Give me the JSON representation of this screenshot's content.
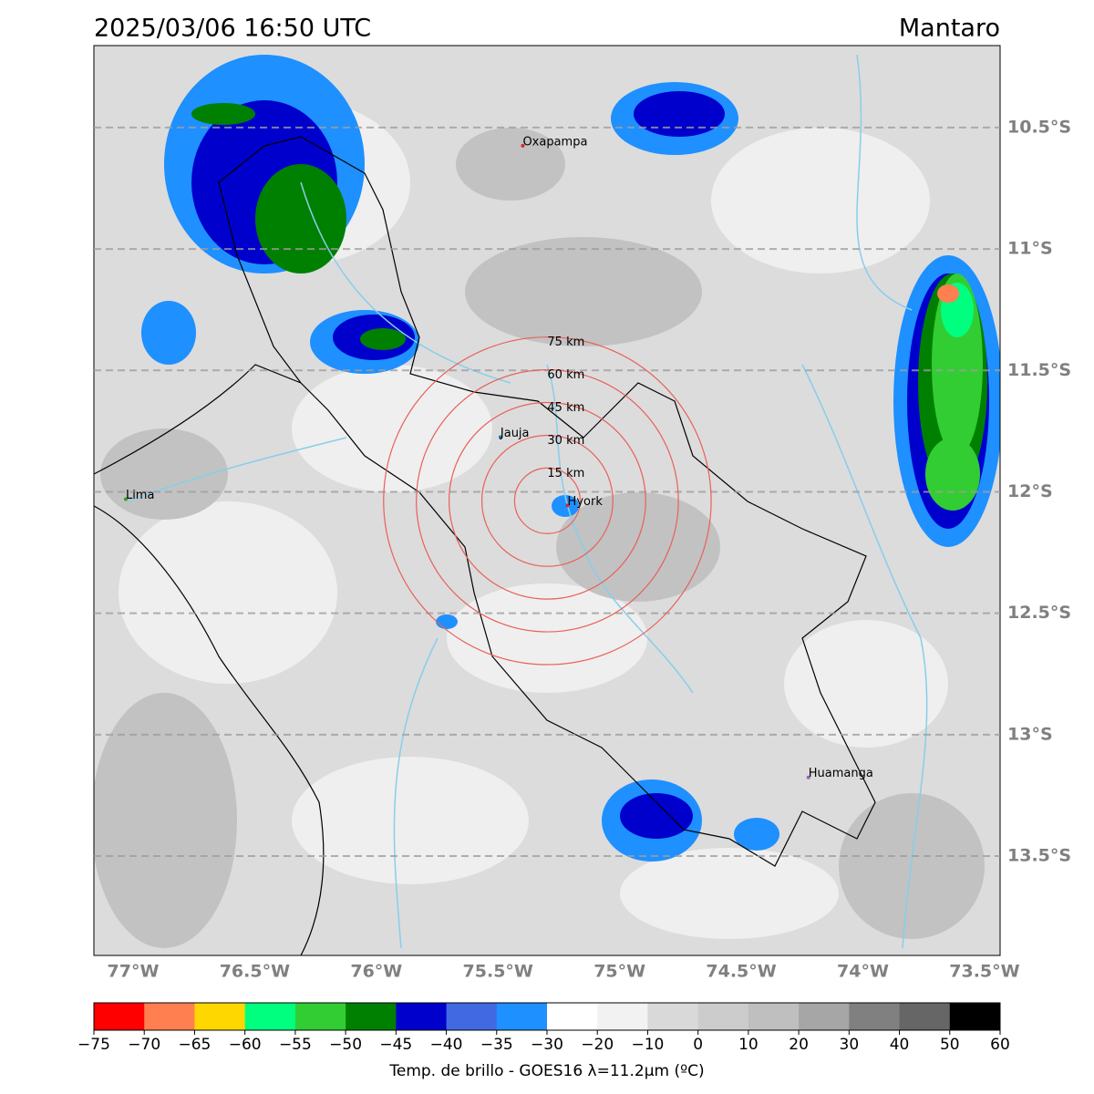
{
  "map": {
    "title": "2025/03/06 16:50 UTC",
    "region": "Mantaro",
    "xlim": [
      -77.161,
      -73.436
    ],
    "ylim": [
      -13.909,
      -10.1625
    ],
    "xticks": [
      {
        "value": -77,
        "label": "77°W"
      },
      {
        "value": -76.5,
        "label": "76.5°W"
      },
      {
        "value": -76,
        "label": "76°W"
      },
      {
        "value": -75.5,
        "label": "75.5°W"
      },
      {
        "value": -75,
        "label": "75°W"
      },
      {
        "value": -74.5,
        "label": "74.5°W"
      },
      {
        "value": -74,
        "label": "74°W"
      },
      {
        "value": -73.5,
        "label": "73.5°W"
      }
    ],
    "yticks": [
      {
        "value": -10.5,
        "label": "10.5°S"
      },
      {
        "value": -11,
        "label": "11°S"
      },
      {
        "value": -11.5,
        "label": "11.5°S"
      },
      {
        "value": -12,
        "label": "12°S"
      },
      {
        "value": -12.5,
        "label": "12.5°S"
      },
      {
        "value": -13,
        "label": "13°S"
      },
      {
        "value": -13.5,
        "label": "13.5°S"
      }
    ],
    "grid": true,
    "cities": [
      {
        "name": "Oxapampa",
        "lon": -75.398,
        "lat": -10.575,
        "color": "#d62728"
      },
      {
        "name": "Jauja",
        "lon": -75.49,
        "lat": -11.775,
        "color": "#1f77b4"
      },
      {
        "name": "Hyork",
        "lon": -75.214,
        "lat": -12.056,
        "color": "#d62728"
      },
      {
        "name": "Lima",
        "lon": -77.03,
        "lat": -12.03,
        "color": "#2ca02c"
      },
      {
        "name": "Huamanga",
        "lon": -74.224,
        "lat": -13.176,
        "color": "#9467bd"
      }
    ],
    "rings": {
      "lon": -75.297,
      "lat": -12.037,
      "color": "#e8605a",
      "radii": [
        {
          "value": 15,
          "label": "15 km"
        },
        {
          "value": 30,
          "label": "30 km"
        },
        {
          "value": 45,
          "label": "45 km"
        },
        {
          "value": 60,
          "label": "60 km"
        },
        {
          "value": 75,
          "label": "75 km"
        }
      ]
    },
    "colorbar": {
      "label": "Temp. de brillo - GOES16 λ=11.2μm (ºC)",
      "colors": [
        "#ff0000",
        "#ff7f50",
        "#ffd700",
        "#00ff7f",
        "#32cd32",
        "#008000",
        "#0000cd",
        "#4169e1",
        "#1e90ff",
        "#ffffff",
        "#f2f2f2",
        "#d9d9d9",
        "#cccccc",
        "#bfbfbf",
        "#a6a6a6",
        "#808080",
        "#666666",
        "#000000"
      ],
      "ticks": [
        {
          "value": -75,
          "label": "−75"
        },
        {
          "value": -70,
          "label": "−70"
        },
        {
          "value": -65,
          "label": "−65"
        },
        {
          "value": -60,
          "label": "−60"
        },
        {
          "value": -55,
          "label": "−55"
        },
        {
          "value": -50,
          "label": "−50"
        },
        {
          "value": -45,
          "label": "−45"
        },
        {
          "value": -40,
          "label": "−40"
        },
        {
          "value": -35,
          "label": "−35"
        },
        {
          "value": -30,
          "label": "−30"
        },
        {
          "value": -20,
          "label": "−20"
        },
        {
          "value": -10,
          "label": "−10"
        },
        0,
        10,
        20,
        30,
        40,
        50,
        60
      ]
    }
  }
}
